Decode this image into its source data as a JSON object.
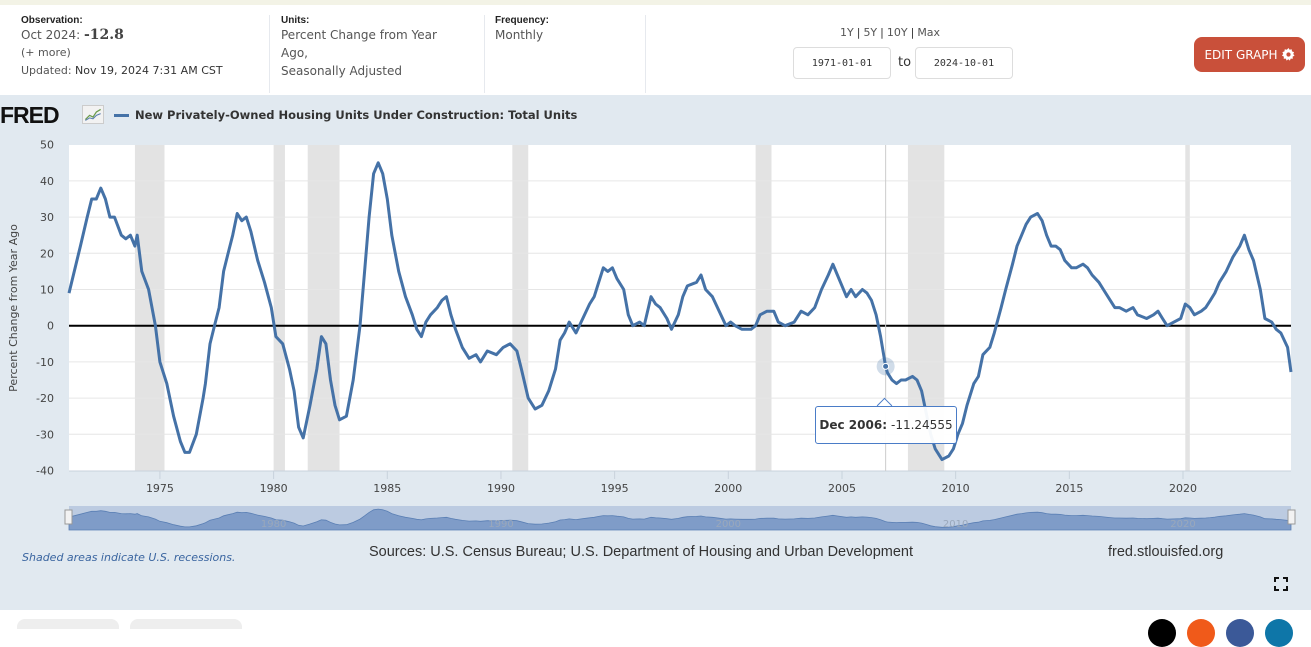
{
  "header": {
    "observation": {
      "label": "Observation:",
      "date": "Oct 2024:",
      "value": "-12.8",
      "more": "(+ more)",
      "updated_label": "Updated:",
      "updated_value": "Nov 19, 2024 7:31 AM CST"
    },
    "units": {
      "label": "Units:",
      "line1": "Percent Change from Year",
      "line2": "Ago,",
      "line3": "Seasonally Adjusted"
    },
    "frequency": {
      "label": "Frequency:",
      "value": "Monthly"
    },
    "range_links": [
      "1Y",
      "5Y",
      "10Y",
      "Max"
    ],
    "start_date": "1971-01-01",
    "to_label": "to",
    "end_date": "2024-10-01",
    "edit_button": "EDIT GRAPH"
  },
  "logo_text": "FRED",
  "footnote": "Shaded areas indicate U.S. recessions.",
  "sources": "Sources: U.S. Census Bureau; U.S. Department of Housing and Urban Development",
  "site": "fred.stlouisfed.org",
  "tooltip": {
    "date": "Dec 2006:",
    "value": "-11.24555"
  },
  "colors": {
    "series": "#4572a7",
    "recession": "#e3e3e3",
    "edit_button": "#c9503a",
    "background": "#e1e9f0"
  },
  "chart_data": {
    "type": "line",
    "title": "",
    "legend": [
      "New Privately-Owned Housing Units Under Construction: Total Units"
    ],
    "legend_position": "top-left",
    "xlabel": "",
    "ylabel": "Percent Change from Year Ago",
    "xlim": [
      1971.0,
      2024.75
    ],
    "ylim": [
      -40,
      50
    ],
    "yticks": [
      50,
      40,
      30,
      20,
      10,
      0,
      -10,
      -20,
      -30,
      -40
    ],
    "xticks": [
      1975,
      1980,
      1985,
      1990,
      1995,
      2000,
      2005,
      2010,
      2015,
      2020
    ],
    "navigator_labels": [
      1980,
      1990,
      2000,
      2010,
      2020
    ],
    "grid": true,
    "zero_line": true,
    "recessions": [
      [
        1973.9,
        1975.2
      ],
      [
        1980.0,
        1980.5
      ],
      [
        1981.5,
        1982.9
      ],
      [
        1990.5,
        1991.2
      ],
      [
        2001.2,
        2001.9
      ],
      [
        2007.9,
        2009.5
      ],
      [
        2020.1,
        2020.3
      ]
    ],
    "hover": {
      "x": 2006.92,
      "y": -11.24555
    },
    "series": [
      {
        "name": "New Privately-Owned Housing Units Under Construction: Total Units",
        "x": [
          1971.0,
          1971.5,
          1971.8,
          1972.0,
          1972.2,
          1972.4,
          1972.6,
          1972.8,
          1973.0,
          1973.3,
          1973.5,
          1973.7,
          1973.9,
          1974.0,
          1974.2,
          1974.5,
          1974.8,
          1975.0,
          1975.3,
          1975.6,
          1975.9,
          1976.1,
          1976.3,
          1976.6,
          1976.9,
          1977.0,
          1977.2,
          1977.4,
          1977.6,
          1977.8,
          1978.0,
          1978.2,
          1978.4,
          1978.6,
          1978.8,
          1979.0,
          1979.3,
          1979.6,
          1979.9,
          1980.1,
          1980.4,
          1980.7,
          1980.9,
          1981.1,
          1981.3,
          1981.6,
          1981.9,
          1982.1,
          1982.3,
          1982.5,
          1982.7,
          1982.9,
          1983.2,
          1983.5,
          1983.8,
          1984.0,
          1984.2,
          1984.4,
          1984.6,
          1984.8,
          1985.0,
          1985.2,
          1985.5,
          1985.8,
          1986.1,
          1986.3,
          1986.5,
          1986.7,
          1986.9,
          1987.2,
          1987.4,
          1987.6,
          1987.8,
          1988.0,
          1988.3,
          1988.6,
          1988.9,
          1989.1,
          1989.4,
          1989.8,
          1990.1,
          1990.4,
          1990.7,
          1990.9,
          1991.2,
          1991.5,
          1991.8,
          1992.1,
          1992.4,
          1992.6,
          1992.8,
          1993.0,
          1993.3,
          1993.6,
          1993.9,
          1994.1,
          1994.3,
          1994.5,
          1994.7,
          1994.9,
          1995.1,
          1995.4,
          1995.6,
          1995.8,
          1996.1,
          1996.3,
          1996.6,
          1996.8,
          1997.0,
          1997.3,
          1997.5,
          1997.8,
          1998.0,
          1998.2,
          1998.6,
          1998.8,
          1999.0,
          1999.3,
          1999.6,
          1999.9,
          2000.1,
          2000.3,
          2000.6,
          2001.0,
          2001.2,
          2001.4,
          2001.7,
          2002.0,
          2002.2,
          2002.5,
          2002.9,
          2003.2,
          2003.5,
          2003.8,
          2004.1,
          2004.4,
          2004.6,
          2004.8,
          2005.0,
          2005.2,
          2005.4,
          2005.6,
          2005.9,
          2006.1,
          2006.3,
          2006.5,
          2006.7,
          2006.92,
          2007.0,
          2007.2,
          2007.4,
          2007.6,
          2007.8,
          2008.1,
          2008.3,
          2008.5,
          2008.7,
          2008.9,
          2009.1,
          2009.4,
          2009.7,
          2009.9,
          2010.1,
          2010.3,
          2010.5,
          2010.8,
          2011.0,
          2011.2,
          2011.5,
          2011.7,
          2012.0,
          2012.2,
          2012.5,
          2012.7,
          2012.9,
          2013.1,
          2013.3,
          2013.6,
          2013.8,
          2014.0,
          2014.2,
          2014.4,
          2014.6,
          2014.8,
          2015.1,
          2015.3,
          2015.6,
          2015.8,
          2016.0,
          2016.3,
          2016.5,
          2016.8,
          2017.0,
          2017.2,
          2017.5,
          2017.8,
          2018.0,
          2018.4,
          2018.7,
          2018.9,
          2019.1,
          2019.3,
          2019.6,
          2019.9,
          2020.1,
          2020.3,
          2020.5,
          2020.8,
          2021.0,
          2021.2,
          2021.4,
          2021.6,
          2021.9,
          2022.2,
          2022.5,
          2022.7,
          2022.9,
          2023.1,
          2023.4,
          2023.6,
          2023.9,
          2024.1,
          2024.3,
          2024.6,
          2024.75
        ],
        "values": [
          9,
          22,
          30,
          35,
          35,
          38,
          35,
          30,
          30,
          25,
          24,
          25,
          22,
          25,
          15,
          10,
          0,
          -10,
          -16,
          -25,
          -32,
          -35,
          -35,
          -30,
          -20,
          -16,
          -5,
          0,
          5,
          15,
          20,
          25,
          31,
          29,
          30,
          26,
          18,
          12,
          5,
          -3,
          -5,
          -12,
          -18,
          -28,
          -31,
          -22,
          -12,
          -3,
          -5,
          -15,
          -22,
          -26,
          -25,
          -15,
          0,
          15,
          30,
          42,
          45,
          42,
          35,
          25,
          15,
          8,
          3,
          -1,
          -3,
          1,
          3,
          5,
          7,
          8,
          3,
          -1,
          -6,
          -9,
          -8,
          -10,
          -7,
          -8,
          -6,
          -5,
          -7,
          -12,
          -20,
          -23,
          -22,
          -18,
          -12,
          -4,
          -2,
          1,
          -2,
          2,
          6,
          8,
          12,
          16,
          15,
          16,
          13,
          10,
          3,
          0,
          1,
          0,
          8,
          6,
          5,
          2,
          -1,
          3,
          8,
          11,
          12,
          14,
          10,
          8,
          4,
          0,
          1,
          0,
          -1,
          -1,
          0,
          3,
          4,
          4,
          1,
          0,
          1,
          4,
          3,
          5,
          10,
          14,
          17,
          14,
          11,
          8,
          10,
          8,
          10,
          9,
          7,
          3,
          -3,
          -11.25,
          -13,
          -15,
          -16,
          -15,
          -15,
          -14,
          -15,
          -18,
          -24,
          -30,
          -34,
          -37,
          -36,
          -34,
          -30,
          -27,
          -22,
          -16,
          -14,
          -8,
          -6,
          -2,
          5,
          10,
          17,
          22,
          25,
          28,
          30,
          31,
          29,
          25,
          22,
          22,
          21,
          18,
          16,
          16,
          17,
          16,
          14,
          12,
          10,
          7,
          5,
          5,
          4,
          5,
          3,
          2,
          3,
          4,
          2,
          0,
          1,
          2,
          6,
          5,
          3,
          4,
          5,
          7,
          9,
          12,
          15,
          19,
          22,
          25,
          21,
          18,
          10,
          2,
          1,
          -1,
          -2,
          -6,
          -12.8
        ]
      }
    ]
  }
}
